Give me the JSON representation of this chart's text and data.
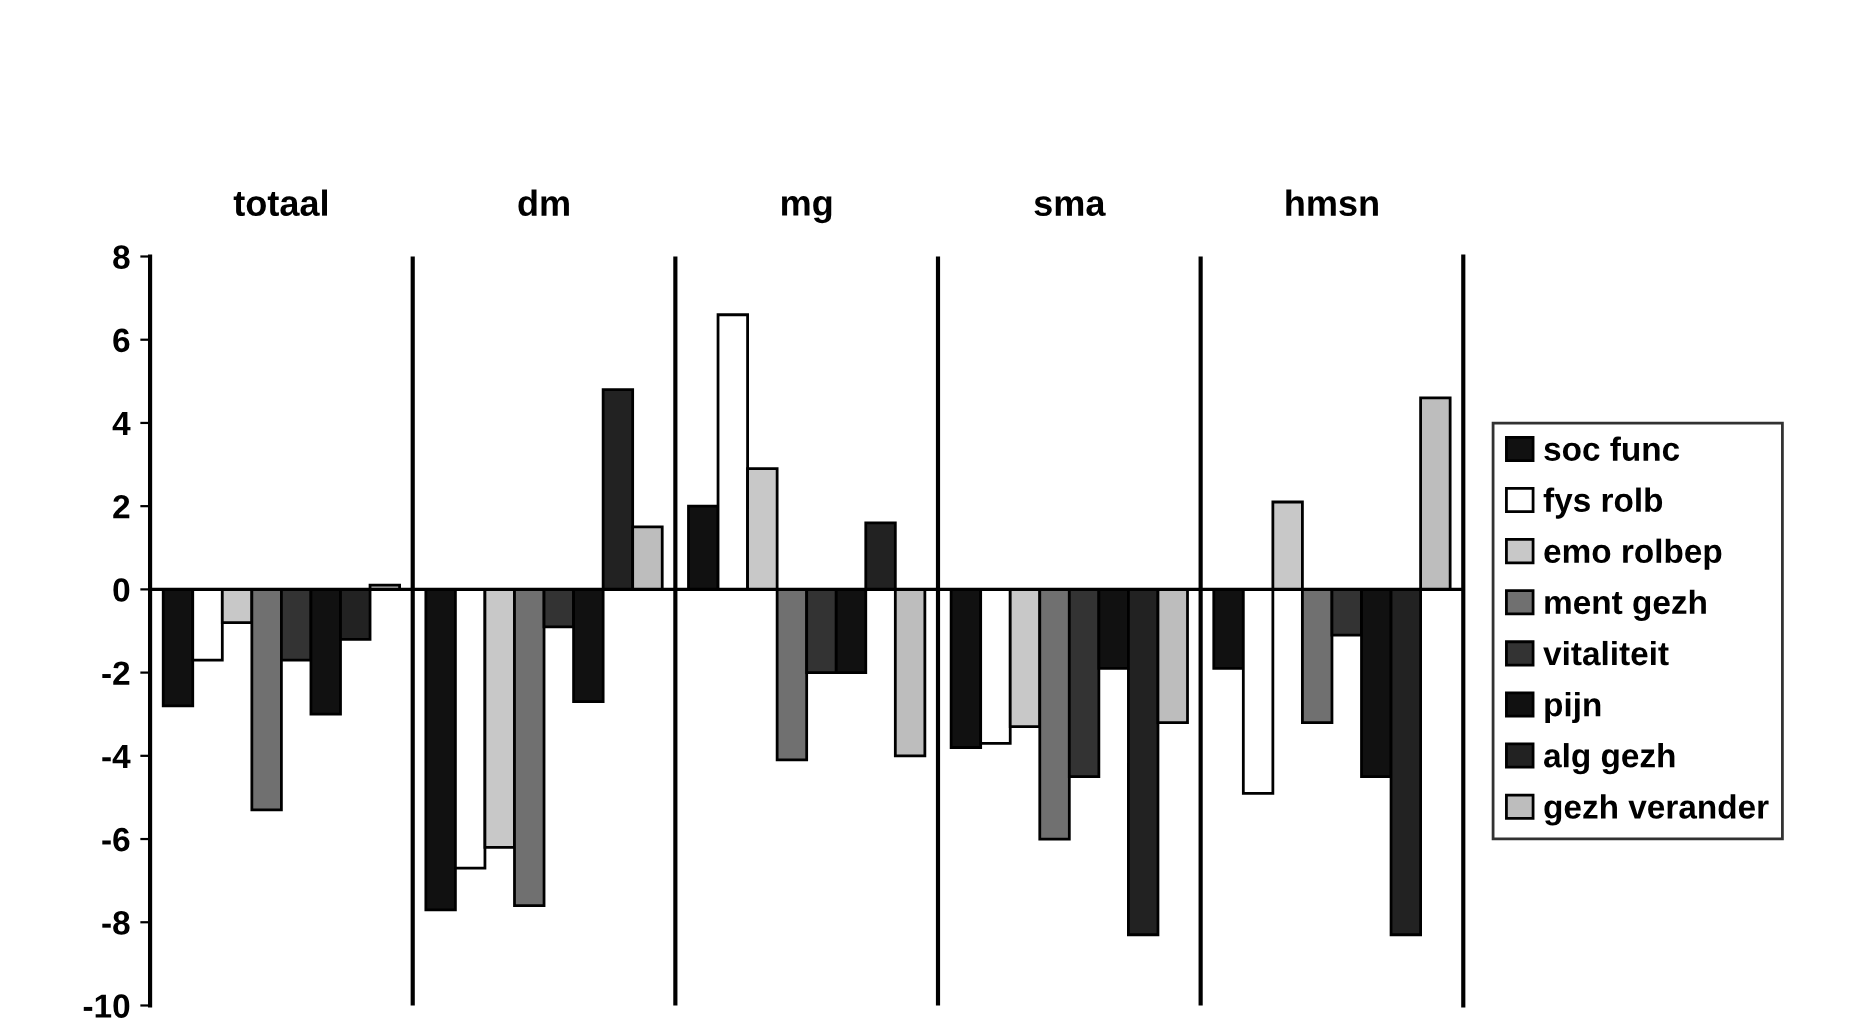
{
  "chart_data": {
    "type": "bar",
    "categories": [
      "totaal",
      "dm",
      "mg",
      "sma",
      "hmsn"
    ],
    "series": [
      {
        "name": "soc func",
        "color": "#111111",
        "values": [
          -2.8,
          -7.7,
          2.0,
          -3.8,
          -1.9
        ]
      },
      {
        "name": "fys rolb",
        "color": "#ffffff",
        "values": [
          -1.7,
          -6.7,
          6.6,
          -3.7,
          -4.9
        ]
      },
      {
        "name": "emo rolbep",
        "color": "#c8c8c8",
        "values": [
          -0.8,
          -6.2,
          2.9,
          -3.3,
          2.1
        ]
      },
      {
        "name": "ment gezh",
        "color": "#707070",
        "values": [
          -5.3,
          -7.6,
          -4.1,
          -6.0,
          -3.2
        ]
      },
      {
        "name": "vitaliteit",
        "color": "#333333",
        "values": [
          -1.7,
          -0.9,
          -2.0,
          -4.5,
          -1.1
        ]
      },
      {
        "name": "pijn",
        "color": "#111111",
        "values": [
          -3.0,
          -2.7,
          -2.0,
          -1.9,
          -4.5
        ]
      },
      {
        "name": "alg gezh",
        "color": "#222222",
        "values": [
          -1.2,
          4.8,
          1.6,
          -8.3,
          -8.3
        ]
      },
      {
        "name": "gezh verander",
        "color": "#bdbdbd",
        "values": [
          0.1,
          1.5,
          -4.0,
          -3.2,
          4.6
        ]
      }
    ],
    "ylim": [
      -10,
      8
    ],
    "yticks": [
      -10,
      -8,
      -6,
      -4,
      -2,
      0,
      2,
      4,
      6,
      8
    ],
    "grid": "x",
    "legend": "right"
  }
}
